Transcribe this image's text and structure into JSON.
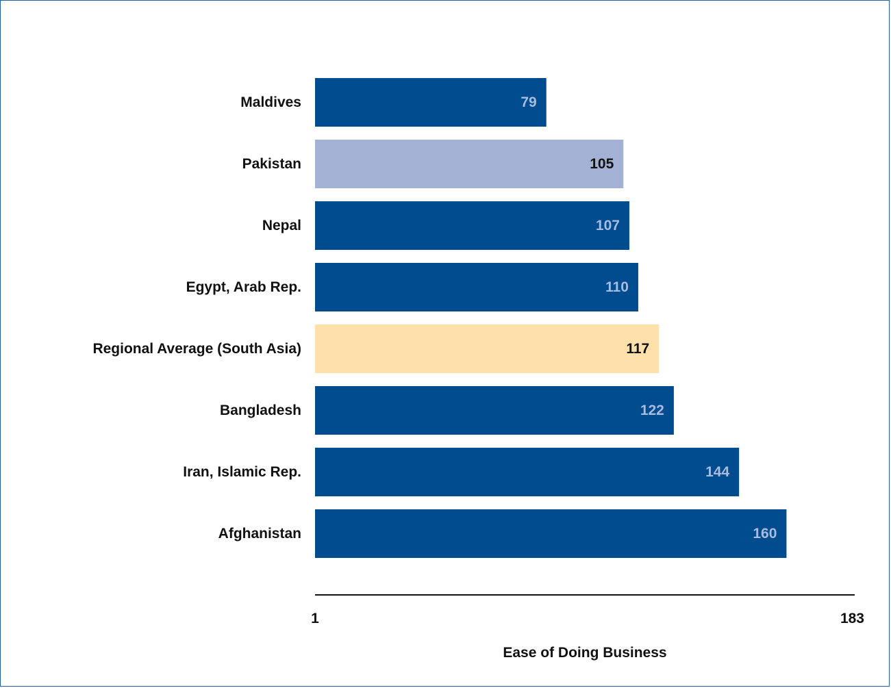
{
  "chart_data": {
    "type": "bar",
    "orientation": "horizontal",
    "categories": [
      "Maldives",
      "Pakistan",
      "Nepal",
      "Egypt, Arab Rep.",
      "Regional Average (South Asia)",
      "Bangladesh",
      "Iran, Islamic Rep.",
      "Afghanistan"
    ],
    "values": [
      79,
      105,
      107,
      110,
      117,
      122,
      144,
      160
    ],
    "bar_colors": [
      "#004c8e",
      "#a3b1d4",
      "#004c8e",
      "#004c8e",
      "#fde0aa",
      "#004c8e",
      "#004c8e",
      "#004c8e"
    ],
    "value_label_colors": [
      "#a6bce0",
      "#111111",
      "#a6bce0",
      "#a6bce0",
      "#111111",
      "#a6bce0",
      "#a6bce0",
      "#a6bce0"
    ],
    "xlabel": "Ease of Doing Business",
    "xlim": [
      1,
      183
    ],
    "x_ticks": [
      "1",
      "183"
    ],
    "grid": false,
    "colors": {
      "frame_border": "#1f5fa8",
      "axis_line": "#111111",
      "primary_bar": "#004c8e",
      "highlight_bar": "#a3b1d4",
      "average_bar": "#fde0aa"
    }
  }
}
